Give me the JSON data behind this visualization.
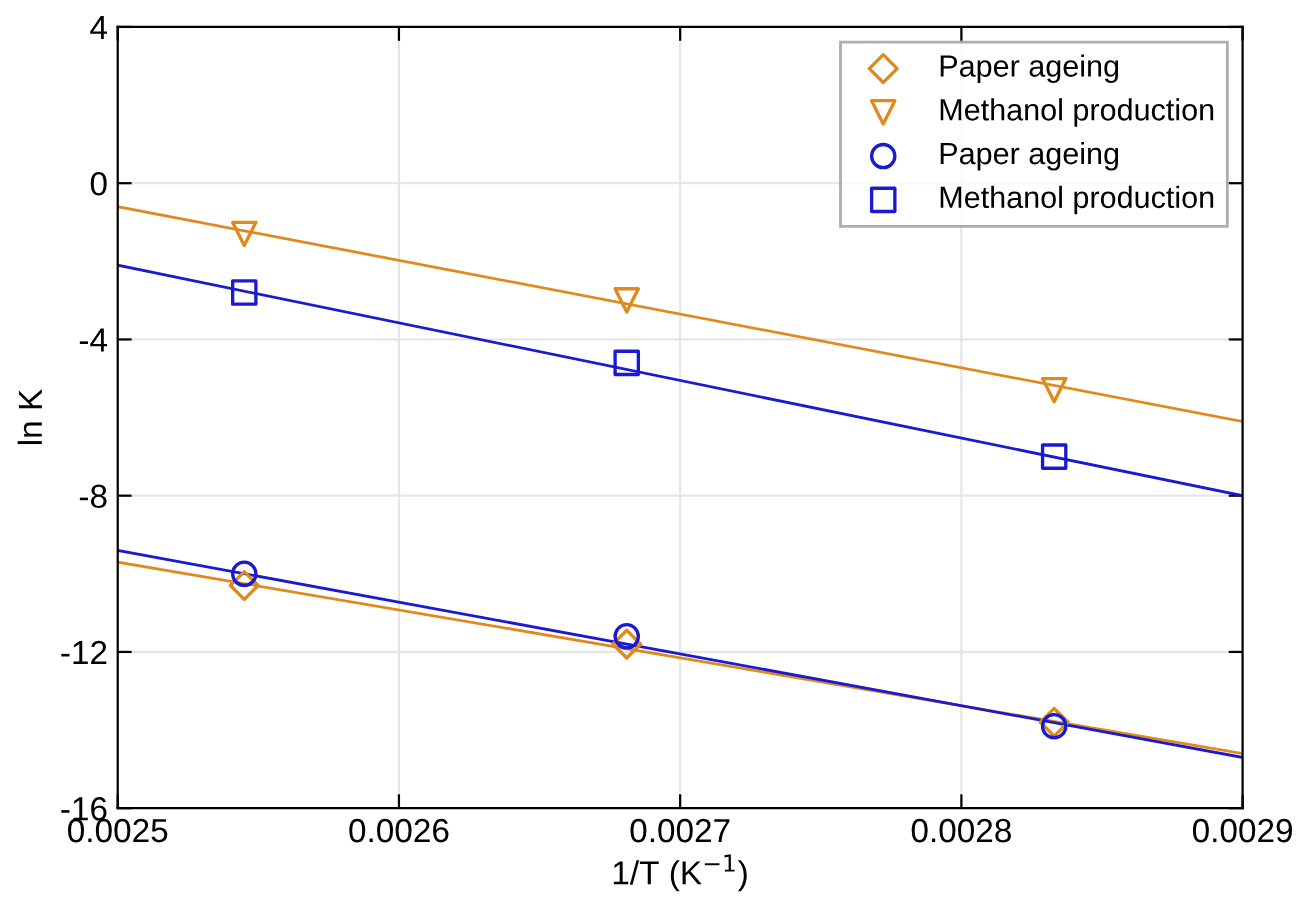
{
  "chart_data": {
    "type": "scatter",
    "xlabel": "1/T (K$^{−1}$)",
    "ylabel": "ln K",
    "xlim": [
      0.0025,
      0.0029
    ],
    "xticks": [
      {
        "value": 0.0025,
        "label": "0.0025"
      },
      {
        "value": 0.0026,
        "label": "0.0026"
      },
      {
        "value": 0.0027,
        "label": "0.0027"
      },
      {
        "value": 0.0028,
        "label": "0.0028"
      },
      {
        "value": 0.0029,
        "label": "0.0029"
      }
    ],
    "ylim": [
      -16,
      4
    ],
    "yticks": [
      -16,
      -12,
      -8,
      -4,
      0,
      4
    ],
    "grid": true,
    "legend": "top right",
    "series": [
      {
        "name": "Paper ageing",
        "color": "#e08a1e",
        "marker": "diamond",
        "x": [
          0.002545,
          0.002681,
          0.002833
        ],
        "values": [
          -10.3,
          -11.8,
          -13.8
        ]
      },
      {
        "name": "Methanol production",
        "color": "#e08a1e",
        "marker": "triangle",
        "x": [
          0.002545,
          0.002681,
          0.002833
        ],
        "values": [
          -1.3,
          -3.0,
          -5.3
        ]
      },
      {
        "name": "Paper ageing",
        "color": "#1a1ad0",
        "marker": "circle",
        "x": [
          0.002545,
          0.002681,
          0.002833
        ],
        "values": [
          -10.0,
          -11.6,
          -13.9
        ]
      },
      {
        "name": "Methanol production",
        "color": "#1a1ad0",
        "marker": "square",
        "x": [
          0.002545,
          0.002681,
          0.002833
        ],
        "values": [
          -2.8,
          -4.6,
          -7.0
        ]
      },
      {
        "type": "line",
        "color": "#e08a1e",
        "x": [
          0.0025,
          0.0029
        ],
        "values": [
          -9.7,
          -14.6
        ]
      },
      {
        "type": "line",
        "color": "#e08a1e",
        "x": [
          0.0025,
          0.0029
        ],
        "values": [
          -0.6,
          -6.1
        ]
      },
      {
        "type": "line",
        "color": "#1a1ad0",
        "x": [
          0.0025,
          0.0029
        ],
        "values": [
          -9.4,
          -14.7
        ]
      },
      {
        "type": "line",
        "color": "#1a1ad0",
        "x": [
          0.0025,
          0.0029
        ],
        "values": [
          -2.1,
          -8.0
        ]
      }
    ]
  }
}
